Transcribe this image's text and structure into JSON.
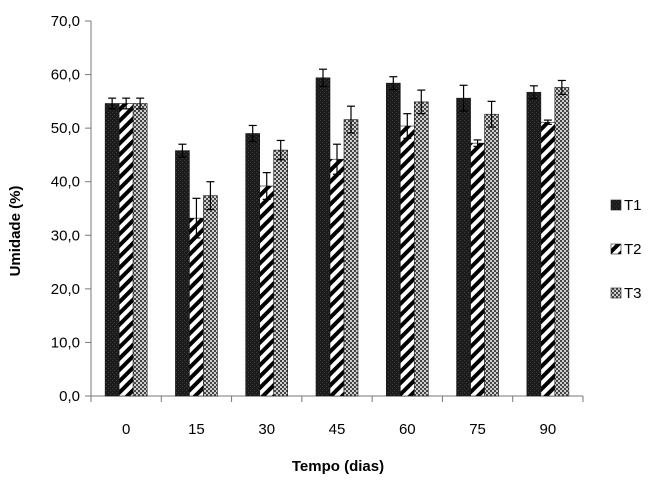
{
  "chart_data": {
    "type": "bar",
    "title": "",
    "xlabel": "Tempo (dias)",
    "ylabel": "Umidade (%)",
    "categories": [
      "0",
      "15",
      "30",
      "45",
      "60",
      "75",
      "90"
    ],
    "ylim": [
      0,
      70
    ],
    "yticks": [
      0,
      10,
      20,
      30,
      40,
      50,
      60,
      70
    ],
    "ytick_labels": [
      "0,0",
      "10,0",
      "20,0",
      "30,0",
      "40,0",
      "50,0",
      "60,0",
      "70,0"
    ],
    "grid": false,
    "legend_position": "right",
    "series": [
      {
        "name": "T1",
        "pattern": "solid-dark",
        "color": "#1a1a1a",
        "values": [
          54.6,
          45.8,
          49.0,
          59.4,
          58.4,
          55.6,
          56.7
        ],
        "errors": [
          1.0,
          1.2,
          1.5,
          1.6,
          1.2,
          2.4,
          1.2
        ]
      },
      {
        "name": "T2",
        "pattern": "diagonal-stripes",
        "color": "#000000",
        "values": [
          54.6,
          33.2,
          39.2,
          44.2,
          50.4,
          47.2,
          51.1
        ],
        "errors": [
          1.0,
          3.7,
          2.5,
          2.8,
          2.3,
          0.6,
          0.4
        ]
      },
      {
        "name": "T3",
        "pattern": "checkered",
        "color": "#555555",
        "values": [
          54.6,
          37.4,
          45.9,
          51.6,
          54.9,
          52.6,
          57.6
        ],
        "errors": [
          1.0,
          2.6,
          1.8,
          2.5,
          2.2,
          2.4,
          1.3
        ]
      }
    ]
  }
}
